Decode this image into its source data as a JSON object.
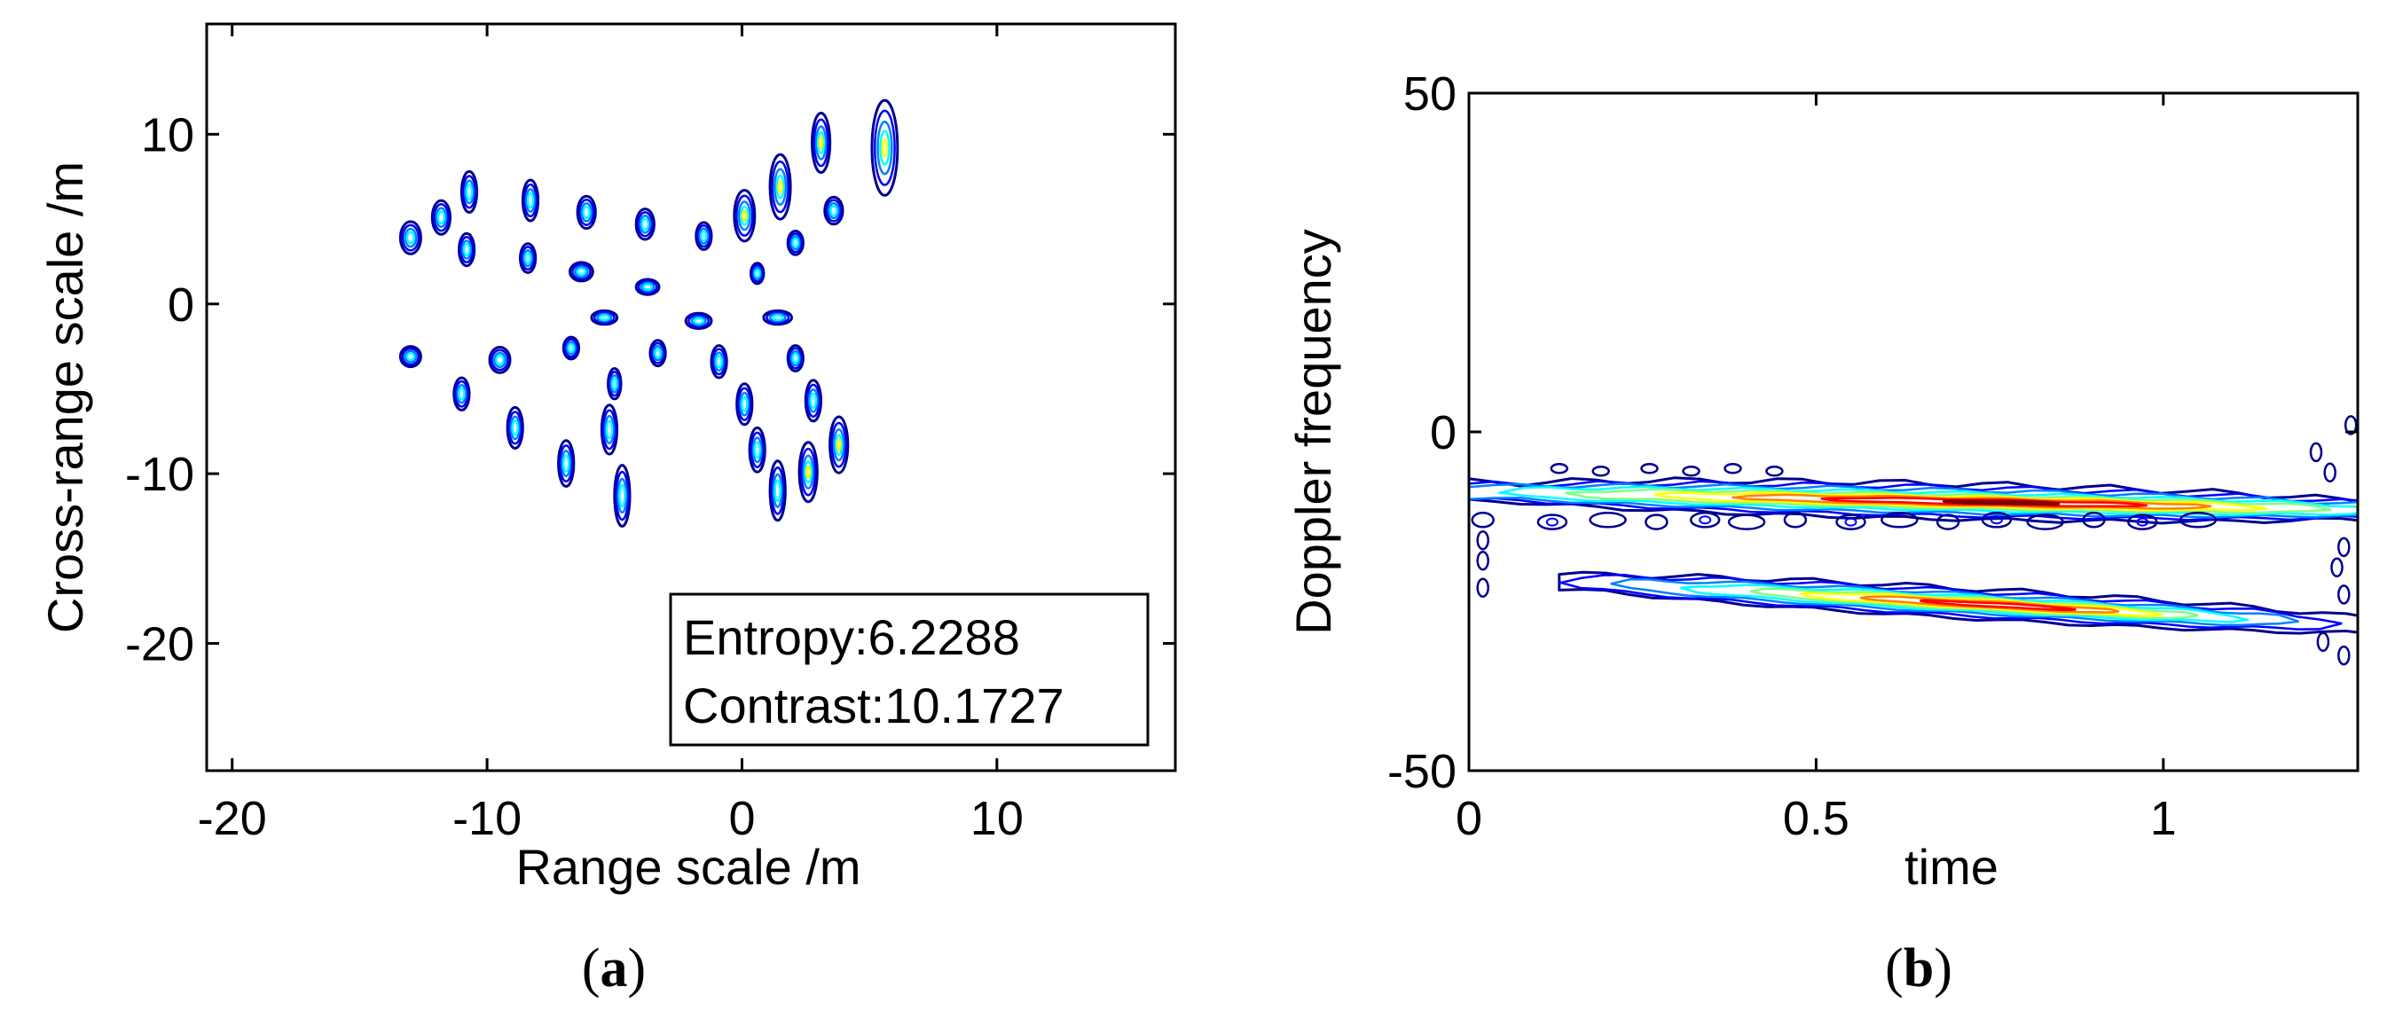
{
  "colors": {
    "c1": "#00008f",
    "c2": "#0000ff",
    "c3": "#0080ff",
    "c4": "#00ffff",
    "c5": "#80ff80",
    "c6": "#ffff00",
    "c7": "#ff8000",
    "c8": "#ff0000",
    "c9": "#800000"
  },
  "chart_data": [
    {
      "panel_id": "a",
      "panel_label_open": "(",
      "panel_label_letter": "a",
      "panel_label_close": ")",
      "type": "contour",
      "title": "",
      "xlabel": "Range scale /m",
      "ylabel": "Cross-range scale /m",
      "xlim": [
        -21,
        17
      ],
      "ylim": [
        -27.5,
        16.5
      ],
      "xticks": [
        -20,
        -10,
        0,
        10
      ],
      "xtick_labels": [
        "-20",
        "-10",
        "0",
        "10"
      ],
      "yticks": [
        10,
        0,
        -10,
        -20
      ],
      "ytick_labels": [
        "10",
        "0",
        "-10",
        "-20"
      ],
      "annotation": {
        "entropy": "Entropy:6.2288",
        "contrast": "Contrast:10.1727"
      },
      "scatterers": [
        {
          "x": -13.0,
          "y": 3.9,
          "w": 0.8,
          "h": 1.9
        },
        {
          "x": -11.8,
          "y": 5.1,
          "w": 0.7,
          "h": 2.0
        },
        {
          "x": -10.7,
          "y": 6.6,
          "w": 0.6,
          "h": 2.4
        },
        {
          "x": -10.8,
          "y": 3.2,
          "w": 0.6,
          "h": 1.9
        },
        {
          "x": -8.3,
          "y": 6.1,
          "w": 0.6,
          "h": 2.4
        },
        {
          "x": -8.4,
          "y": 2.7,
          "w": 0.6,
          "h": 1.7
        },
        {
          "x": -6.1,
          "y": 5.4,
          "w": 0.7,
          "h": 1.9
        },
        {
          "x": -6.3,
          "y": 1.9,
          "w": 0.9,
          "h": 1.1
        },
        {
          "x": -3.8,
          "y": 4.7,
          "w": 0.7,
          "h": 1.8
        },
        {
          "x": -3.7,
          "y": 1.0,
          "w": 0.9,
          "h": 0.9
        },
        {
          "x": -1.5,
          "y": 4.0,
          "w": 0.6,
          "h": 1.6
        },
        {
          "x": 0.1,
          "y": 5.2,
          "w": 0.8,
          "h": 3.0
        },
        {
          "x": 0.6,
          "y": 1.8,
          "w": 0.5,
          "h": 1.2
        },
        {
          "x": 1.5,
          "y": 6.9,
          "w": 0.8,
          "h": 3.8
        },
        {
          "x": 2.1,
          "y": 3.6,
          "w": 0.6,
          "h": 1.4
        },
        {
          "x": 3.1,
          "y": 9.5,
          "w": 0.7,
          "h": 3.5
        },
        {
          "x": 3.6,
          "y": 5.5,
          "w": 0.7,
          "h": 1.6
        },
        {
          "x": 5.6,
          "y": 9.2,
          "w": 1.0,
          "h": 5.6
        },
        {
          "x": -5.4,
          "y": -0.8,
          "w": 1.0,
          "h": 0.8
        },
        {
          "x": -1.7,
          "y": -1.0,
          "w": 1.0,
          "h": 0.9
        },
        {
          "x": 1.4,
          "y": -0.8,
          "w": 1.1,
          "h": 0.8
        },
        {
          "x": -13.0,
          "y": -3.1,
          "w": 0.8,
          "h": 1.2
        },
        {
          "x": -11.0,
          "y": -5.3,
          "w": 0.6,
          "h": 1.9
        },
        {
          "x": -9.5,
          "y": -3.3,
          "w": 0.8,
          "h": 1.5
        },
        {
          "x": -8.9,
          "y": -7.3,
          "w": 0.6,
          "h": 2.4
        },
        {
          "x": -6.7,
          "y": -2.6,
          "w": 0.6,
          "h": 1.3
        },
        {
          "x": -6.9,
          "y": -9.4,
          "w": 0.6,
          "h": 2.7
        },
        {
          "x": -5.0,
          "y": -4.7,
          "w": 0.5,
          "h": 1.8
        },
        {
          "x": -5.2,
          "y": -7.4,
          "w": 0.6,
          "h": 2.9
        },
        {
          "x": -4.7,
          "y": -11.3,
          "w": 0.6,
          "h": 3.6
        },
        {
          "x": -3.3,
          "y": -2.9,
          "w": 0.6,
          "h": 1.5
        },
        {
          "x": -0.9,
          "y": -3.4,
          "w": 0.6,
          "h": 1.9
        },
        {
          "x": 0.1,
          "y": -5.9,
          "w": 0.6,
          "h": 2.4
        },
        {
          "x": 0.6,
          "y": -8.6,
          "w": 0.6,
          "h": 2.6
        },
        {
          "x": 1.4,
          "y": -11.0,
          "w": 0.6,
          "h": 3.5
        },
        {
          "x": 2.1,
          "y": -3.2,
          "w": 0.6,
          "h": 1.5
        },
        {
          "x": 2.8,
          "y": -5.7,
          "w": 0.6,
          "h": 2.4
        },
        {
          "x": 2.6,
          "y": -9.9,
          "w": 0.7,
          "h": 3.5
        },
        {
          "x": 3.8,
          "y": -8.3,
          "w": 0.7,
          "h": 3.3
        }
      ]
    },
    {
      "panel_id": "b",
      "panel_label_open": "(",
      "panel_label_letter": "b",
      "panel_label_close": ")",
      "type": "contour",
      "title": "",
      "xlabel": "time",
      "ylabel": "Doppler frequency",
      "xlim": [
        0,
        1.28
      ],
      "ylim": [
        -50,
        50
      ],
      "xticks": [
        0,
        0.5,
        1
      ],
      "xtick_labels": [
        "0",
        "0.5",
        "1"
      ],
      "yticks": [
        50,
        0,
        -50
      ],
      "ytick_labels": [
        "50",
        "0",
        "-50"
      ],
      "components": [
        {
          "name": "upper band",
          "t_start": 0.0,
          "t_end": 1.28,
          "f_start": -8.8,
          "f_end": -11.5,
          "peak_time": 0.78,
          "peak_freq": -10.6
        },
        {
          "name": "lower band",
          "t_start": 0.13,
          "t_end": 1.28,
          "f_start": -22.0,
          "f_end": -28.5,
          "peak_time": 0.78,
          "peak_freq": -26.8
        }
      ]
    }
  ]
}
